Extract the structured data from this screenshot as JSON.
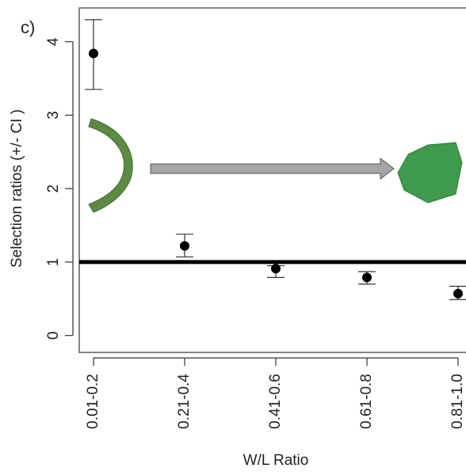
{
  "chart_data": {
    "type": "dot-errorbar",
    "panel_label": "c)",
    "x_label": "W/L Ratio",
    "y_label": "Selection ratios (+/- CI )",
    "categories": [
      "0.01-0.2",
      "0.21-0.4",
      "0.41-0.6",
      "0.61-0.8",
      "0.81-1.0"
    ],
    "values": [
      3.84,
      1.22,
      0.91,
      0.79,
      0.57
    ],
    "ci_low": [
      3.35,
      1.07,
      0.79,
      0.7,
      0.49
    ],
    "ci_high": [
      4.3,
      1.38,
      0.95,
      0.87,
      0.67
    ],
    "reference_line": 1,
    "color": "#000000",
    "ylim": [
      -0.23,
      4.46
    ],
    "yticks": [
      0,
      1,
      2,
      3,
      4
    ]
  }
}
